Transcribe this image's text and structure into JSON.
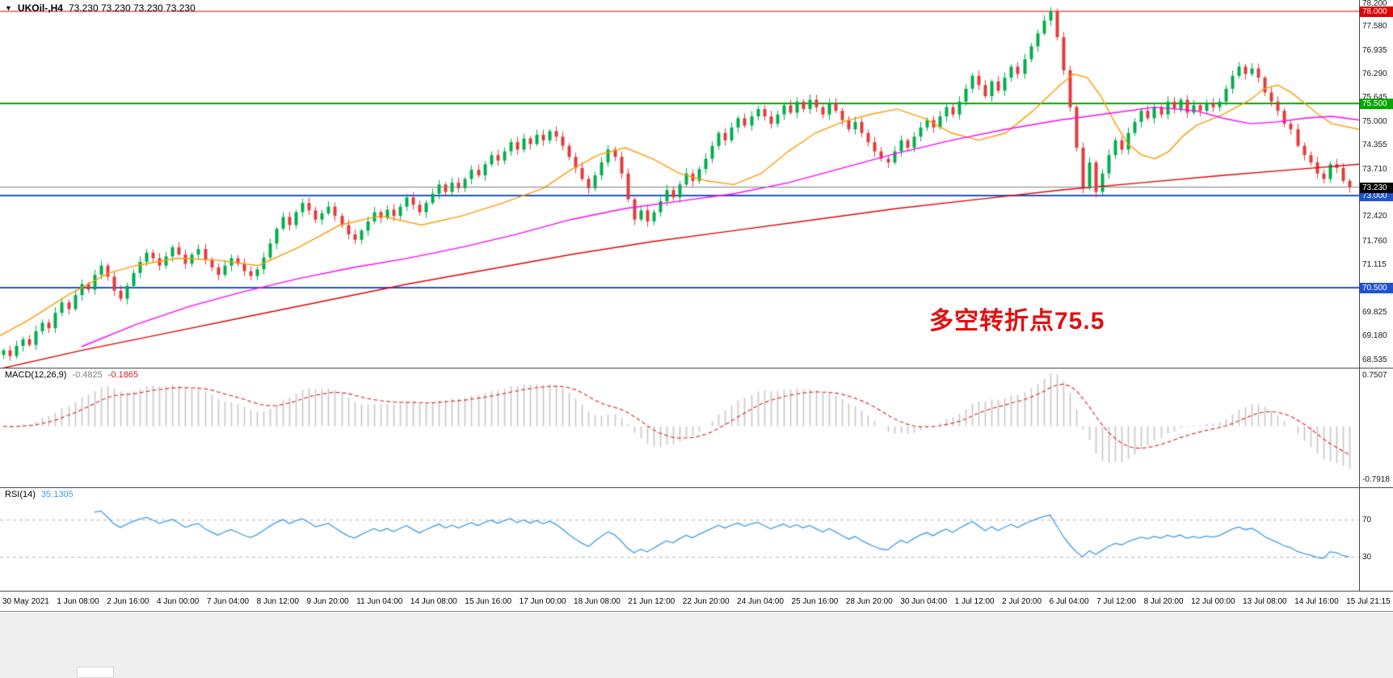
{
  "header": {
    "symbol_period": "UKOil-,H4",
    "ohlc": "73.230 73.230 73.230 73.230"
  },
  "icons": {
    "symbol_dropdown": "▼"
  },
  "annotation": {
    "text": "多空转折点75.5",
    "color": "#e01010"
  },
  "chart_data": [
    {
      "type": "candlestick",
      "title": "UKOil- H4 price chart",
      "ylim": [
        68.44,
        78.22
      ],
      "up_color": "#00ad4c",
      "down_color": "#e23b3b",
      "price_axis_ticks": [
        "78.200",
        "77.580",
        "76.935",
        "76.290",
        "75.645",
        "75.000",
        "74.355",
        "73.710",
        "72.420",
        "71.760",
        "71.115",
        "69.825",
        "69.180",
        "68.535"
      ],
      "levels": [
        {
          "price": 78.0,
          "label": "78.000",
          "color": "#e00000",
          "line_width": 1
        },
        {
          "price": 75.5,
          "label": "75.500",
          "color": "#00a800",
          "line_width": 2
        },
        {
          "price": 73.0,
          "label": "73.000",
          "color": "#2052d0",
          "line_width": 2
        },
        {
          "price": 70.5,
          "label": "70.500",
          "color": "#2052d0",
          "line_width": 2
        }
      ],
      "current_price": {
        "value": 73.23,
        "label": "73.230",
        "line_color": "#808080",
        "badge_color": "#000000"
      },
      "closes": [
        68.8,
        68.65,
        68.92,
        69.1,
        68.95,
        69.32,
        69.55,
        69.4,
        69.82,
        70.1,
        69.92,
        70.3,
        70.6,
        70.45,
        70.85,
        71.1,
        70.8,
        70.42,
        70.2,
        70.55,
        70.9,
        71.2,
        71.45,
        71.3,
        71.1,
        71.35,
        71.6,
        71.4,
        71.15,
        71.4,
        71.55,
        71.25,
        71.05,
        70.85,
        71.1,
        71.3,
        71.15,
        70.95,
        70.82,
        71.0,
        71.32,
        71.7,
        72.1,
        72.42,
        72.2,
        72.55,
        72.8,
        72.6,
        72.35,
        72.52,
        72.7,
        72.45,
        72.2,
        71.95,
        71.8,
        72.05,
        72.3,
        72.55,
        72.4,
        72.62,
        72.45,
        72.7,
        72.95,
        72.75,
        72.55,
        72.8,
        73.05,
        73.3,
        73.1,
        73.35,
        73.2,
        73.45,
        73.7,
        73.55,
        73.85,
        74.1,
        73.95,
        74.2,
        74.45,
        74.25,
        74.55,
        74.4,
        74.65,
        74.5,
        74.75,
        74.6,
        74.35,
        74.05,
        73.75,
        73.45,
        73.2,
        73.55,
        73.9,
        74.25,
        74.05,
        73.6,
        72.9,
        72.35,
        72.6,
        72.3,
        72.55,
        72.85,
        73.15,
        72.95,
        73.3,
        73.6,
        73.4,
        73.72,
        74.0,
        74.35,
        74.7,
        74.5,
        74.85,
        75.1,
        74.9,
        75.15,
        75.35,
        75.15,
        74.95,
        75.2,
        75.45,
        75.25,
        75.55,
        75.35,
        75.6,
        75.4,
        75.2,
        75.5,
        75.3,
        75.05,
        74.8,
        75.0,
        74.7,
        74.45,
        74.2,
        74.0,
        73.9,
        74.2,
        74.5,
        74.3,
        74.6,
        74.85,
        75.05,
        74.85,
        75.15,
        75.4,
        75.2,
        75.55,
        75.9,
        76.25,
        76.0,
        75.7,
        76.1,
        75.85,
        76.2,
        76.5,
        76.3,
        76.7,
        77.05,
        77.4,
        77.75,
        78.0,
        77.3,
        76.4,
        75.4,
        74.3,
        73.2,
        73.9,
        73.1,
        73.6,
        74.1,
        74.5,
        74.25,
        74.7,
        75.0,
        75.3,
        75.1,
        75.4,
        75.2,
        75.55,
        75.35,
        75.6,
        75.25,
        75.45,
        75.3,
        75.5,
        75.4,
        75.55,
        75.9,
        76.25,
        76.5,
        76.3,
        76.45,
        76.2,
        75.8,
        75.55,
        75.3,
        74.95,
        74.8,
        74.35,
        74.1,
        73.9,
        73.6,
        73.45,
        73.85,
        73.75,
        73.4,
        73.23
      ],
      "ma_lines": [
        {
          "name": "ma-fast-orange",
          "color": "#ff9900",
          "points": [
            [
              0,
              69.2
            ],
            [
              0.02,
              69.6
            ],
            [
              0.05,
              70.3
            ],
            [
              0.08,
              70.9
            ],
            [
              0.1,
              71.1
            ],
            [
              0.13,
              71.3
            ],
            [
              0.16,
              71.25
            ],
            [
              0.19,
              71.1
            ],
            [
              0.22,
              71.6
            ],
            [
              0.25,
              72.2
            ],
            [
              0.28,
              72.45
            ],
            [
              0.31,
              72.2
            ],
            [
              0.34,
              72.45
            ],
            [
              0.37,
              72.8
            ],
            [
              0.4,
              73.2
            ],
            [
              0.42,
              73.7
            ],
            [
              0.44,
              74.1
            ],
            [
              0.46,
              74.3
            ],
            [
              0.48,
              74.0
            ],
            [
              0.5,
              73.6
            ],
            [
              0.52,
              73.4
            ],
            [
              0.54,
              73.3
            ],
            [
              0.56,
              73.6
            ],
            [
              0.58,
              74.2
            ],
            [
              0.6,
              74.7
            ],
            [
              0.62,
              75.0
            ],
            [
              0.64,
              75.2
            ],
            [
              0.66,
              75.35
            ],
            [
              0.68,
              75.1
            ],
            [
              0.7,
              74.7
            ],
            [
              0.72,
              74.5
            ],
            [
              0.74,
              74.7
            ],
            [
              0.76,
              75.3
            ],
            [
              0.78,
              76.0
            ],
            [
              0.79,
              76.3
            ],
            [
              0.8,
              76.2
            ],
            [
              0.81,
              75.7
            ],
            [
              0.82,
              75.0
            ],
            [
              0.83,
              74.4
            ],
            [
              0.84,
              74.1
            ],
            [
              0.85,
              74.0
            ],
            [
              0.86,
              74.2
            ],
            [
              0.87,
              74.6
            ],
            [
              0.88,
              74.9
            ],
            [
              0.9,
              75.2
            ],
            [
              0.92,
              75.6
            ],
            [
              0.93,
              75.9
            ],
            [
              0.94,
              76.0
            ],
            [
              0.95,
              75.8
            ],
            [
              0.96,
              75.5
            ],
            [
              0.97,
              75.2
            ],
            [
              0.98,
              74.95
            ],
            [
              1,
              74.8
            ]
          ]
        },
        {
          "name": "ma-mid-magenta",
          "color": "#ff00ff",
          "points": [
            [
              0.06,
              68.9
            ],
            [
              0.1,
              69.5
            ],
            [
              0.14,
              70.0
            ],
            [
              0.18,
              70.4
            ],
            [
              0.22,
              70.75
            ],
            [
              0.26,
              71.05
            ],
            [
              0.3,
              71.3
            ],
            [
              0.34,
              71.6
            ],
            [
              0.38,
              71.95
            ],
            [
              0.42,
              72.35
            ],
            [
              0.46,
              72.65
            ],
            [
              0.5,
              72.85
            ],
            [
              0.54,
              73.05
            ],
            [
              0.58,
              73.35
            ],
            [
              0.62,
              73.75
            ],
            [
              0.66,
              74.15
            ],
            [
              0.7,
              74.5
            ],
            [
              0.74,
              74.8
            ],
            [
              0.78,
              75.05
            ],
            [
              0.82,
              75.25
            ],
            [
              0.85,
              75.4
            ],
            [
              0.88,
              75.3
            ],
            [
              0.9,
              75.1
            ],
            [
              0.92,
              74.95
            ],
            [
              0.94,
              75.0
            ],
            [
              0.96,
              75.1
            ],
            [
              0.98,
              75.15
            ],
            [
              1,
              75.05
            ]
          ]
        },
        {
          "name": "ma-slow-red",
          "color": "#e00000",
          "points": [
            [
              0,
              68.3
            ],
            [
              0.06,
              68.8
            ],
            [
              0.12,
              69.25
            ],
            [
              0.18,
              69.7
            ],
            [
              0.24,
              70.15
            ],
            [
              0.3,
              70.6
            ],
            [
              0.36,
              71.0
            ],
            [
              0.42,
              71.4
            ],
            [
              0.48,
              71.75
            ],
            [
              0.54,
              72.05
            ],
            [
              0.6,
              72.35
            ],
            [
              0.66,
              72.65
            ],
            [
              0.72,
              72.9
            ],
            [
              0.78,
              73.15
            ],
            [
              0.84,
              73.35
            ],
            [
              0.9,
              73.55
            ],
            [
              0.95,
              73.7
            ],
            [
              1,
              73.85
            ]
          ]
        }
      ],
      "x_labels": [
        "30 May 2021",
        "1 Jun 08:00",
        "2 Jun 16:00",
        "4 Jun 00:00",
        "7 Jun 04:00",
        "8 Jun 12:00",
        "9 Jun 20:00",
        "11 Jun 04:00",
        "14 Jun 08:00",
        "15 Jun 16:00",
        "17 Jun 00:00",
        "18 Jun 08:00",
        "21 Jun 12:00",
        "22 Jun 20:00",
        "24 Jun 04:00",
        "25 Jun 16:00",
        "28 Jun 20:00",
        "30 Jun 04:00",
        "1 Jul 12:00",
        "2 Jul 20:00",
        "6 Jul 04:00",
        "7 Jul 12:00",
        "8 Jul 20:00",
        "12 Jul 00:00",
        "13 Jul 08:00",
        "14 Jul 16:00",
        "15 Jul 21:15"
      ]
    },
    {
      "type": "bar",
      "title": "MACD indicator",
      "label": "MACD(12,26,9)",
      "value_main": "-0.4825",
      "value_signal": "-0.1865",
      "params": {
        "fast": 12,
        "slow": 26,
        "signal": 9
      },
      "axis_labels": [
        "0.7507",
        "-0.7918"
      ],
      "histogram_color": "#c6c6c6",
      "signal_color": "#dd3535"
    },
    {
      "type": "line",
      "title": "RSI indicator",
      "label": "RSI(14)",
      "value_text": "35.1305",
      "period": 14,
      "line_color": "#3d9be9",
      "levels": [
        70,
        30
      ],
      "range": [
        0,
        100
      ]
    }
  ]
}
